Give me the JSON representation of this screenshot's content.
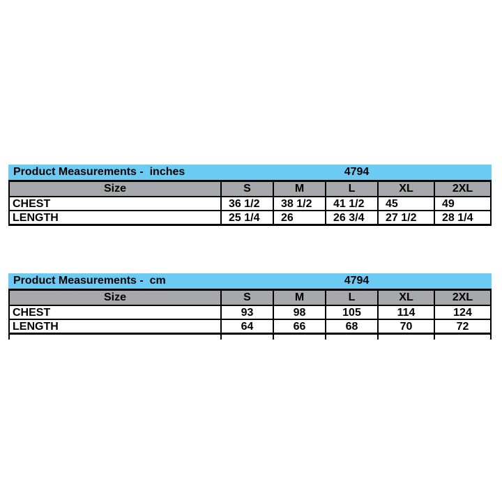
{
  "colors": {
    "page-bg": "#ffffff",
    "table-header-bg": "#6bcbf2",
    "size-row-bg": "#a6a8ab",
    "border": "#000000",
    "text": "#000000"
  },
  "product_code": "4794",
  "tables": [
    {
      "title": "Product Measurements -  inches",
      "code": "4794",
      "size_label": "Size",
      "columns": [
        "S",
        "M",
        "L",
        "XL",
        "2XL"
      ],
      "rows": [
        {
          "label": "CHEST",
          "values": [
            "36 1/2",
            "38 1/2",
            "41 1/2",
            "45",
            "49"
          ]
        },
        {
          "label": "LENGTH",
          "values": [
            "25 1/4",
            "26",
            "26 3/4",
            "27 1/2",
            "28 1/4"
          ]
        }
      ]
    },
    {
      "title": "Product Measurements -  cm",
      "code": "4794",
      "size_label": "Size",
      "columns": [
        "S",
        "M",
        "L",
        "XL",
        "2XL"
      ],
      "rows": [
        {
          "label": "CHEST",
          "values": [
            "93",
            "98",
            "105",
            "114",
            "124"
          ]
        },
        {
          "label": "LENGTH",
          "values": [
            "64",
            "66",
            "68",
            "70",
            "72"
          ]
        }
      ]
    }
  ]
}
